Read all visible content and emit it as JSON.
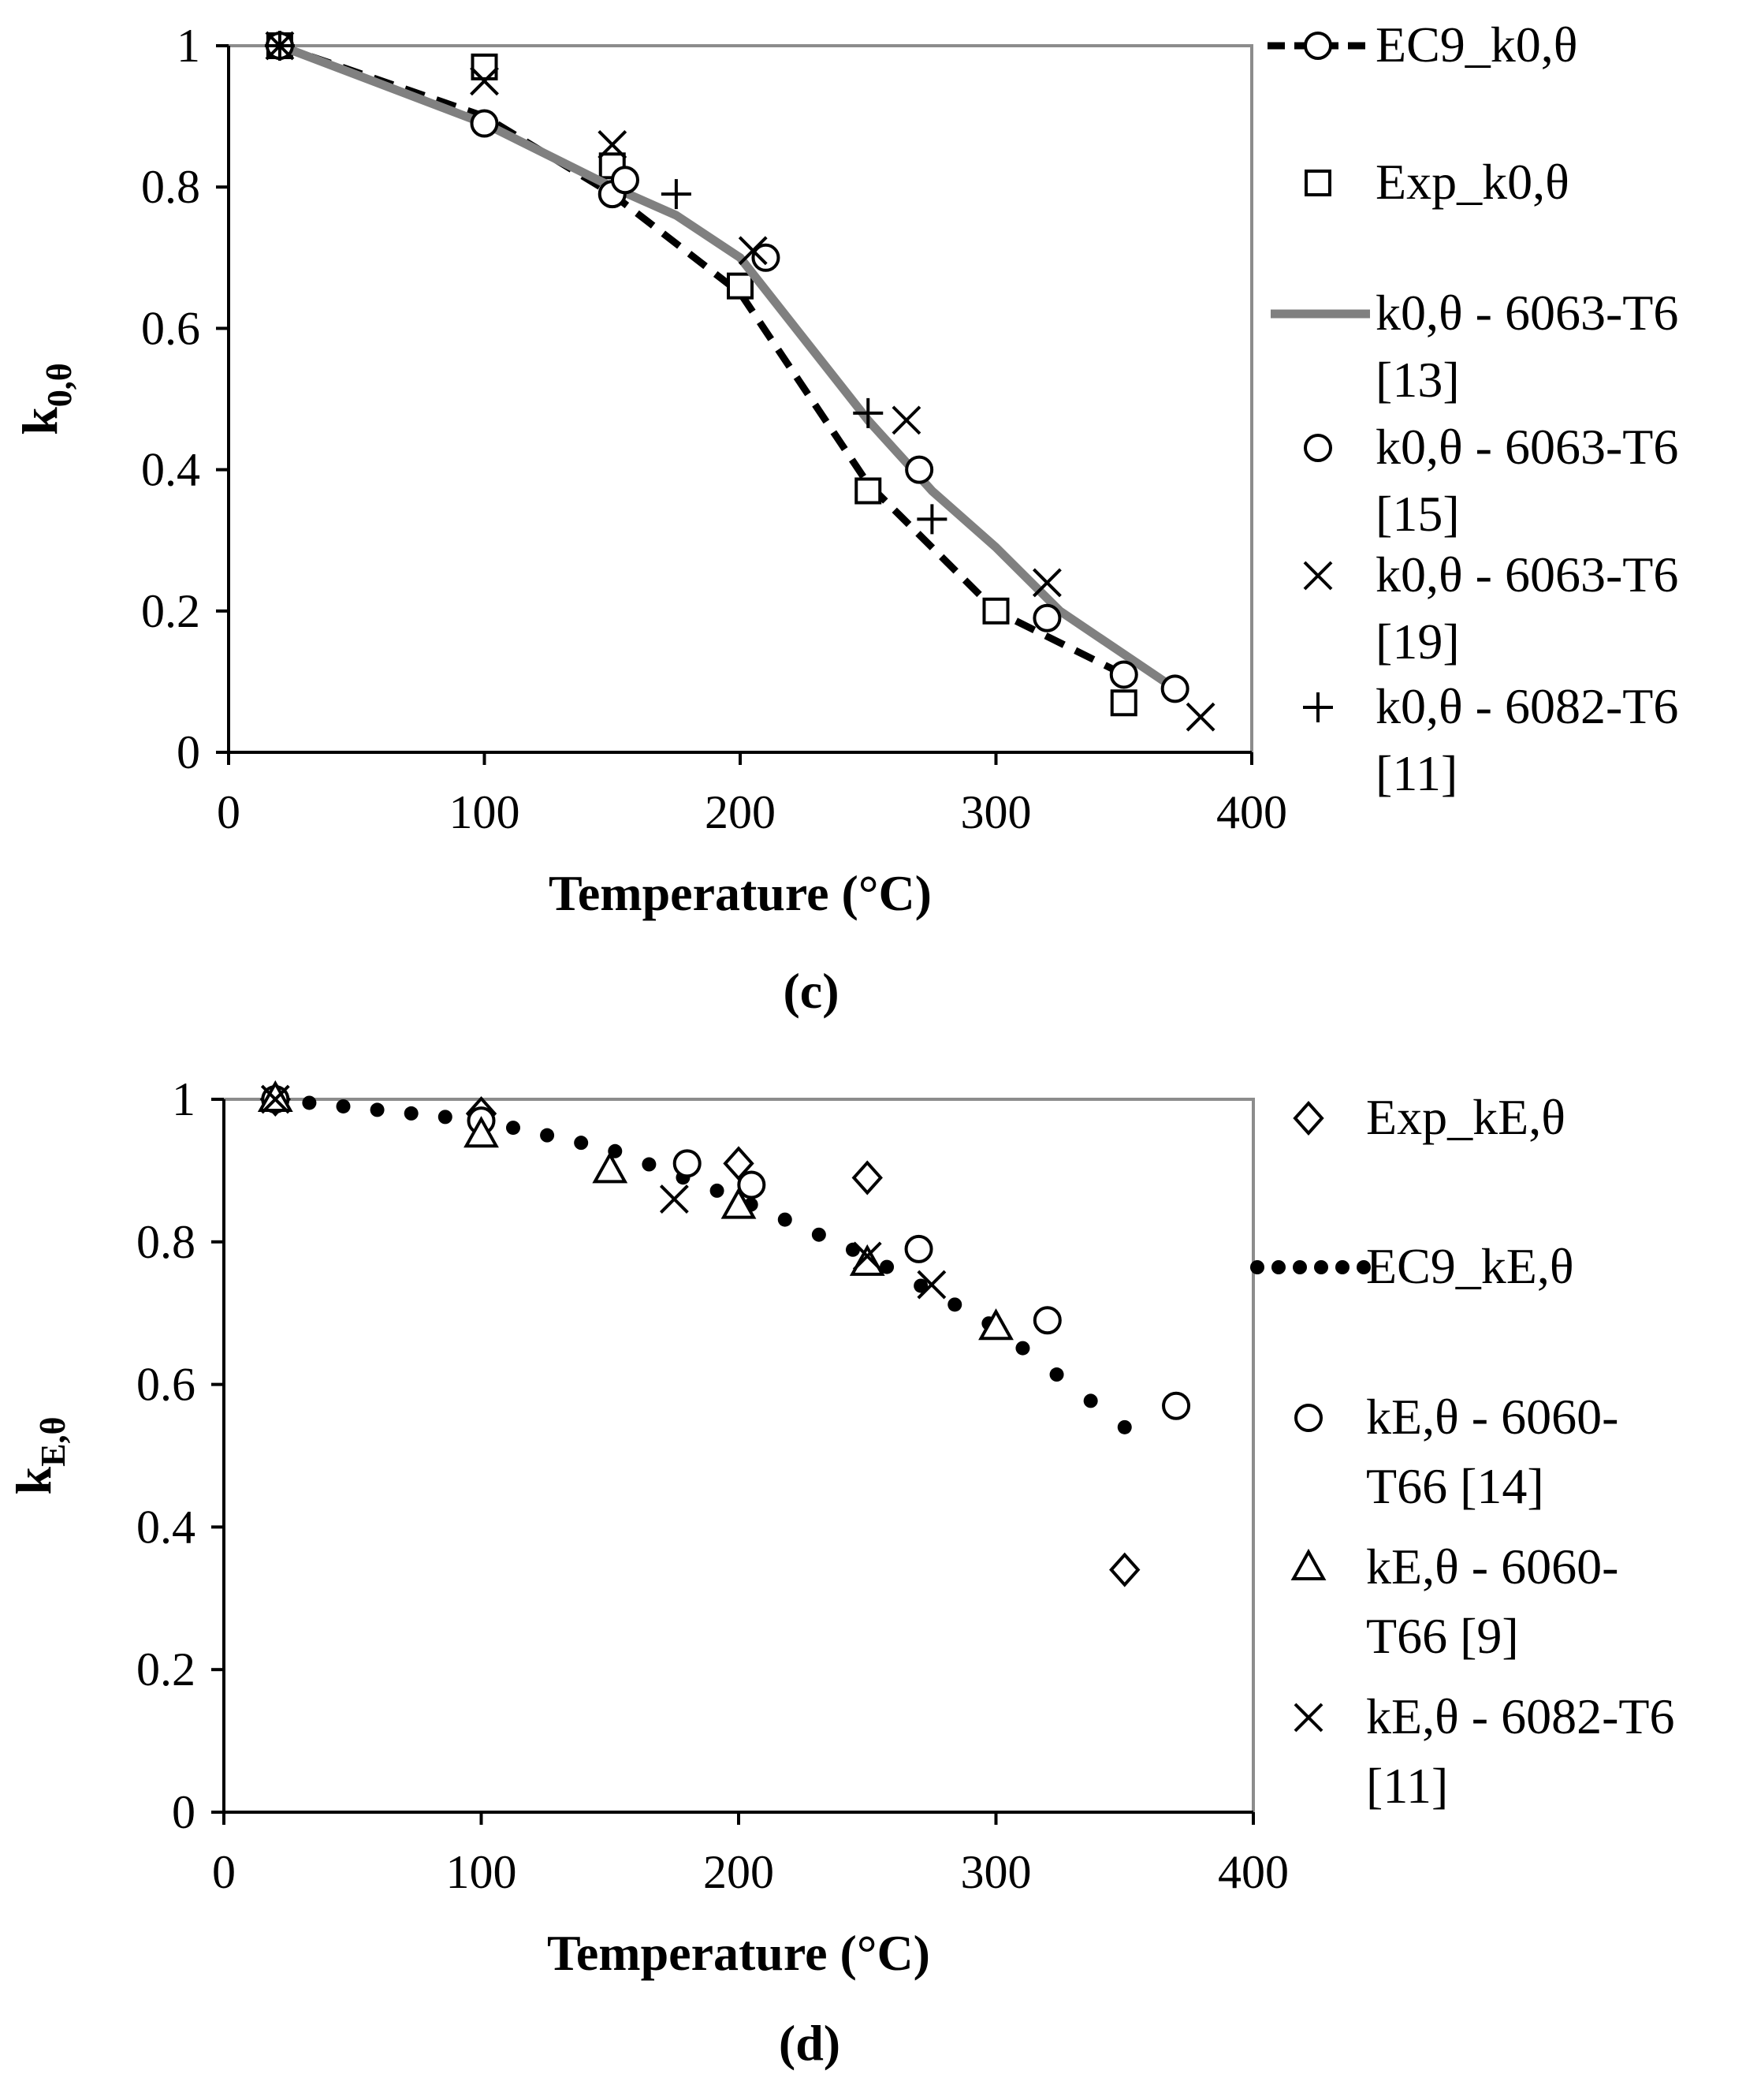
{
  "chart_data": [
    {
      "type": "line",
      "panel_label": "(c)",
      "xlabel": "Temperature (°C)",
      "ylabel": {
        "base": "k",
        "sub": "0,θ"
      },
      "xlim": [
        0,
        400
      ],
      "ylim": [
        0,
        1
      ],
      "xticks": [
        0,
        100,
        200,
        300,
        400
      ],
      "xtick_labels": [
        "0",
        "100",
        "200",
        "300",
        "400"
      ],
      "yticks": [
        0,
        0.2,
        0.4,
        0.6,
        0.8,
        1
      ],
      "ytick_labels": [
        "0",
        "0.2",
        "0.4",
        "0.6",
        "0.8",
        "1"
      ],
      "grid": false,
      "legend_position": "right",
      "series": [
        {
          "name": "EC9_k0,θ",
          "style": "dashed-line-circle",
          "color": "#000000",
          "x": [
            20,
            100,
            150,
            200,
            250,
            300,
            350
          ],
          "y": [
            1.0,
            0.9,
            0.79,
            0.65,
            0.38,
            0.2,
            0.11
          ]
        },
        {
          "name": "Exp_k0,θ",
          "style": "square",
          "color": "#000000",
          "x": [
            20,
            100,
            150,
            200,
            250,
            300,
            350
          ],
          "y": [
            1.0,
            0.97,
            0.83,
            0.66,
            0.37,
            0.2,
            0.07
          ]
        },
        {
          "name": "k0,θ - 6063-T6",
          "name_line2": "[13]",
          "style": "solid-line",
          "color": "#808080",
          "x": [
            20,
            100,
            150,
            175,
            200,
            250,
            275,
            300,
            325,
            370
          ],
          "y": [
            1.0,
            0.89,
            0.8,
            0.76,
            0.7,
            0.47,
            0.37,
            0.29,
            0.2,
            0.09
          ]
        },
        {
          "name": "k0,θ - 6063-T6",
          "name_line2": "[15]",
          "style": "circle",
          "color": "#000000",
          "x": [
            20,
            100,
            150,
            155,
            210,
            270,
            320,
            350,
            370
          ],
          "y": [
            1.0,
            0.89,
            0.79,
            0.81,
            0.7,
            0.4,
            0.19,
            0.11,
            0.09
          ]
        },
        {
          "name": "k0,θ - 6063-T6",
          "name_line2": "[19]",
          "style": "x",
          "color": "#000000",
          "x": [
            20,
            100,
            150,
            205,
            265,
            320,
            380
          ],
          "y": [
            1.0,
            0.95,
            0.86,
            0.71,
            0.47,
            0.24,
            0.05
          ]
        },
        {
          "name": "k0,θ - 6082-T6",
          "name_line2": "[11]",
          "style": "plus",
          "color": "#000000",
          "x": [
            20,
            175,
            250,
            275
          ],
          "y": [
            1.0,
            0.79,
            0.48,
            0.33
          ]
        }
      ]
    },
    {
      "type": "scatter",
      "panel_label": "(d)",
      "xlabel": "Temperature (°C)",
      "ylabel": {
        "base": "k",
        "sub": "E,θ"
      },
      "xlim": [
        0,
        400
      ],
      "ylim": [
        0,
        1
      ],
      "xticks": [
        0,
        100,
        200,
        300,
        400
      ],
      "xtick_labels": [
        "0",
        "100",
        "200",
        "300",
        "400"
      ],
      "yticks": [
        0,
        0.2,
        0.4,
        0.6,
        0.8,
        1
      ],
      "ytick_labels": [
        "0",
        "0.2",
        "0.4",
        "0.6",
        "0.8",
        "1"
      ],
      "grid": false,
      "legend_position": "right",
      "series": [
        {
          "name": "Exp_kE,θ",
          "style": "diamond",
          "color": "#000000",
          "x": [
            20,
            100,
            200,
            250,
            350
          ],
          "y": [
            1.0,
            0.98,
            0.91,
            0.89,
            0.34
          ]
        },
        {
          "name": "EC9_kE,θ",
          "style": "dotted-line",
          "color": "#000000",
          "x": [
            20,
            100,
            150,
            200,
            250,
            300,
            350
          ],
          "y": [
            1.0,
            0.97,
            0.93,
            0.86,
            0.78,
            0.68,
            0.54
          ]
        },
        {
          "name": "kE,θ - 6060-",
          "name_line2": "T66 [14]",
          "style": "circle",
          "color": "#000000",
          "x": [
            20,
            100,
            180,
            205,
            270,
            320,
            370
          ],
          "y": [
            1.0,
            0.97,
            0.91,
            0.88,
            0.79,
            0.69,
            0.57
          ]
        },
        {
          "name": "kE,θ - 6060-",
          "name_line2": "T66 [9]",
          "style": "triangle",
          "color": "#000000",
          "x": [
            20,
            100,
            150,
            200,
            250,
            300
          ],
          "y": [
            1.0,
            0.95,
            0.9,
            0.85,
            0.77,
            0.68
          ]
        },
        {
          "name": "kE,θ - 6082-T6",
          "name_line2": "[11]",
          "style": "x",
          "color": "#000000",
          "x": [
            20,
            175,
            250,
            275
          ],
          "y": [
            1.0,
            0.86,
            0.78,
            0.74
          ]
        }
      ]
    }
  ]
}
